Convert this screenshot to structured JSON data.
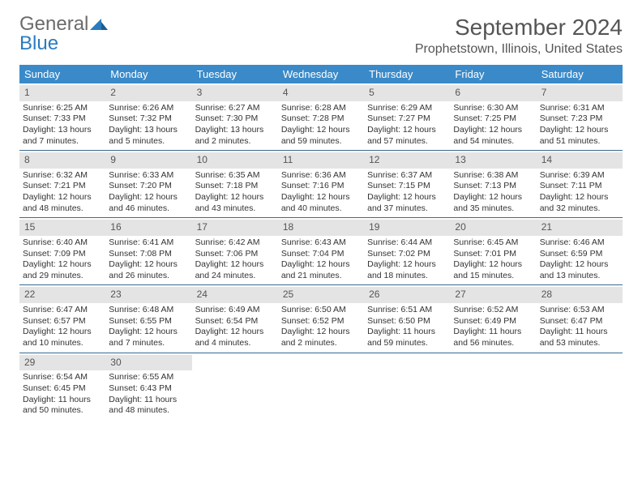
{
  "logo": {
    "text1": "General",
    "text2": "Blue"
  },
  "title": "September 2024",
  "location": "Prophetstown, Illinois, United States",
  "day_headers": [
    "Sunday",
    "Monday",
    "Tuesday",
    "Wednesday",
    "Thursday",
    "Friday",
    "Saturday"
  ],
  "colors": {
    "header_bg": "#3a8ac9",
    "daynum_bg": "#e4e4e4",
    "row_border": "#3a6a8f",
    "logo_gray": "#6b6b6b",
    "logo_blue": "#2a7bbf"
  },
  "weeks": [
    [
      {
        "n": "1",
        "sr": "Sunrise: 6:25 AM",
        "ss": "Sunset: 7:33 PM",
        "dl": "Daylight: 13 hours and 7 minutes."
      },
      {
        "n": "2",
        "sr": "Sunrise: 6:26 AM",
        "ss": "Sunset: 7:32 PM",
        "dl": "Daylight: 13 hours and 5 minutes."
      },
      {
        "n": "3",
        "sr": "Sunrise: 6:27 AM",
        "ss": "Sunset: 7:30 PM",
        "dl": "Daylight: 13 hours and 2 minutes."
      },
      {
        "n": "4",
        "sr": "Sunrise: 6:28 AM",
        "ss": "Sunset: 7:28 PM",
        "dl": "Daylight: 12 hours and 59 minutes."
      },
      {
        "n": "5",
        "sr": "Sunrise: 6:29 AM",
        "ss": "Sunset: 7:27 PM",
        "dl": "Daylight: 12 hours and 57 minutes."
      },
      {
        "n": "6",
        "sr": "Sunrise: 6:30 AM",
        "ss": "Sunset: 7:25 PM",
        "dl": "Daylight: 12 hours and 54 minutes."
      },
      {
        "n": "7",
        "sr": "Sunrise: 6:31 AM",
        "ss": "Sunset: 7:23 PM",
        "dl": "Daylight: 12 hours and 51 minutes."
      }
    ],
    [
      {
        "n": "8",
        "sr": "Sunrise: 6:32 AM",
        "ss": "Sunset: 7:21 PM",
        "dl": "Daylight: 12 hours and 48 minutes."
      },
      {
        "n": "9",
        "sr": "Sunrise: 6:33 AM",
        "ss": "Sunset: 7:20 PM",
        "dl": "Daylight: 12 hours and 46 minutes."
      },
      {
        "n": "10",
        "sr": "Sunrise: 6:35 AM",
        "ss": "Sunset: 7:18 PM",
        "dl": "Daylight: 12 hours and 43 minutes."
      },
      {
        "n": "11",
        "sr": "Sunrise: 6:36 AM",
        "ss": "Sunset: 7:16 PM",
        "dl": "Daylight: 12 hours and 40 minutes."
      },
      {
        "n": "12",
        "sr": "Sunrise: 6:37 AM",
        "ss": "Sunset: 7:15 PM",
        "dl": "Daylight: 12 hours and 37 minutes."
      },
      {
        "n": "13",
        "sr": "Sunrise: 6:38 AM",
        "ss": "Sunset: 7:13 PM",
        "dl": "Daylight: 12 hours and 35 minutes."
      },
      {
        "n": "14",
        "sr": "Sunrise: 6:39 AM",
        "ss": "Sunset: 7:11 PM",
        "dl": "Daylight: 12 hours and 32 minutes."
      }
    ],
    [
      {
        "n": "15",
        "sr": "Sunrise: 6:40 AM",
        "ss": "Sunset: 7:09 PM",
        "dl": "Daylight: 12 hours and 29 minutes."
      },
      {
        "n": "16",
        "sr": "Sunrise: 6:41 AM",
        "ss": "Sunset: 7:08 PM",
        "dl": "Daylight: 12 hours and 26 minutes."
      },
      {
        "n": "17",
        "sr": "Sunrise: 6:42 AM",
        "ss": "Sunset: 7:06 PM",
        "dl": "Daylight: 12 hours and 24 minutes."
      },
      {
        "n": "18",
        "sr": "Sunrise: 6:43 AM",
        "ss": "Sunset: 7:04 PM",
        "dl": "Daylight: 12 hours and 21 minutes."
      },
      {
        "n": "19",
        "sr": "Sunrise: 6:44 AM",
        "ss": "Sunset: 7:02 PM",
        "dl": "Daylight: 12 hours and 18 minutes."
      },
      {
        "n": "20",
        "sr": "Sunrise: 6:45 AM",
        "ss": "Sunset: 7:01 PM",
        "dl": "Daylight: 12 hours and 15 minutes."
      },
      {
        "n": "21",
        "sr": "Sunrise: 6:46 AM",
        "ss": "Sunset: 6:59 PM",
        "dl": "Daylight: 12 hours and 13 minutes."
      }
    ],
    [
      {
        "n": "22",
        "sr": "Sunrise: 6:47 AM",
        "ss": "Sunset: 6:57 PM",
        "dl": "Daylight: 12 hours and 10 minutes."
      },
      {
        "n": "23",
        "sr": "Sunrise: 6:48 AM",
        "ss": "Sunset: 6:55 PM",
        "dl": "Daylight: 12 hours and 7 minutes."
      },
      {
        "n": "24",
        "sr": "Sunrise: 6:49 AM",
        "ss": "Sunset: 6:54 PM",
        "dl": "Daylight: 12 hours and 4 minutes."
      },
      {
        "n": "25",
        "sr": "Sunrise: 6:50 AM",
        "ss": "Sunset: 6:52 PM",
        "dl": "Daylight: 12 hours and 2 minutes."
      },
      {
        "n": "26",
        "sr": "Sunrise: 6:51 AM",
        "ss": "Sunset: 6:50 PM",
        "dl": "Daylight: 11 hours and 59 minutes."
      },
      {
        "n": "27",
        "sr": "Sunrise: 6:52 AM",
        "ss": "Sunset: 6:49 PM",
        "dl": "Daylight: 11 hours and 56 minutes."
      },
      {
        "n": "28",
        "sr": "Sunrise: 6:53 AM",
        "ss": "Sunset: 6:47 PM",
        "dl": "Daylight: 11 hours and 53 minutes."
      }
    ],
    [
      {
        "n": "29",
        "sr": "Sunrise: 6:54 AM",
        "ss": "Sunset: 6:45 PM",
        "dl": "Daylight: 11 hours and 50 minutes."
      },
      {
        "n": "30",
        "sr": "Sunrise: 6:55 AM",
        "ss": "Sunset: 6:43 PM",
        "dl": "Daylight: 11 hours and 48 minutes."
      },
      {
        "empty": true
      },
      {
        "empty": true
      },
      {
        "empty": true
      },
      {
        "empty": true
      },
      {
        "empty": true
      }
    ]
  ]
}
